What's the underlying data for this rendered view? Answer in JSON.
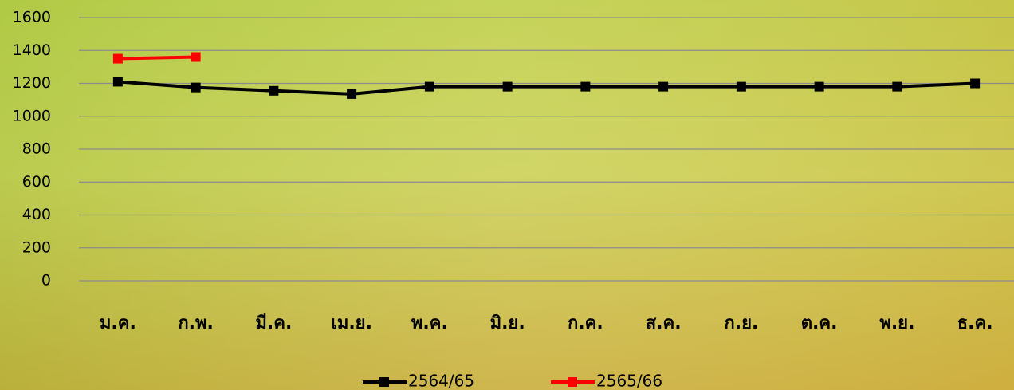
{
  "chart_data": {
    "type": "line",
    "categories": [
      "ม.ค.",
      "ก.พ.",
      "มี.ค.",
      "เม.ย.",
      "พ.ค.",
      "มิ.ย.",
      "ก.ค.",
      "ส.ค.",
      "ก.ย.",
      "ต.ค.",
      "พ.ย.",
      "ธ.ค."
    ],
    "series": [
      {
        "name": "2564/65",
        "color": "#000000",
        "values": [
          1210,
          1175,
          1155,
          1135,
          1180,
          1180,
          1180,
          1180,
          1180,
          1180,
          1180,
          1200
        ]
      },
      {
        "name": "2565/66",
        "color": "#ff0000",
        "values": [
          1350,
          1360,
          null,
          null,
          null,
          null,
          null,
          null,
          null,
          null,
          null,
          null
        ]
      }
    ],
    "ylim": [
      0,
      1600
    ],
    "yticks": [
      0,
      200,
      400,
      600,
      800,
      1000,
      1200,
      1400,
      1600
    ],
    "grid": true,
    "legend": "bottom"
  }
}
